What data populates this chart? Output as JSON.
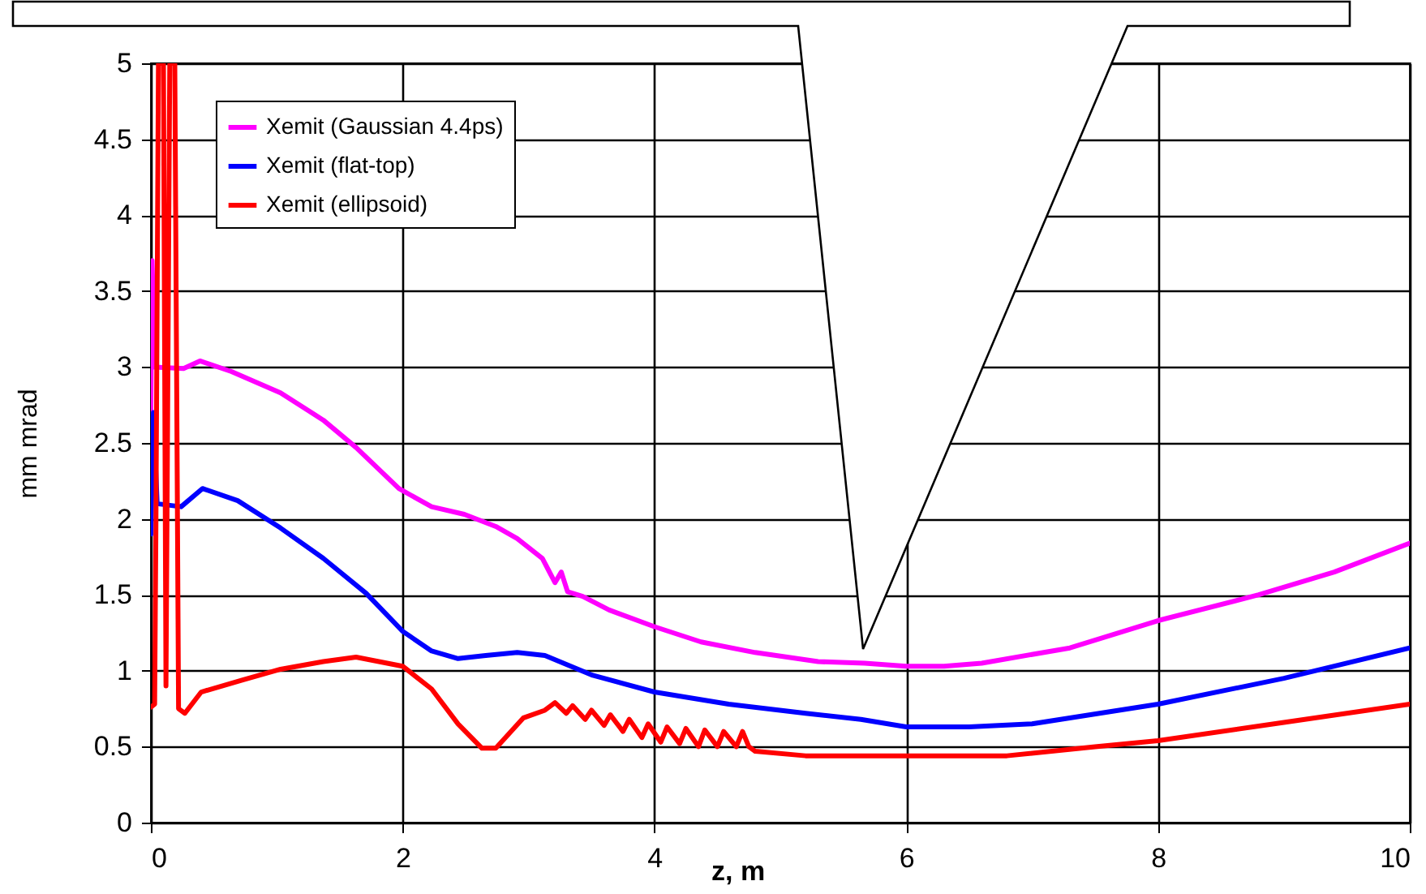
{
  "chart_data": {
    "type": "line",
    "xlabel": "z, m",
    "ylabel": "mm mrad",
    "xlim": [
      0,
      10
    ],
    "xticks": [
      0,
      2,
      4,
      6,
      8,
      10
    ],
    "ylim": [
      0,
      5
    ],
    "yticks": [
      0,
      0.5,
      1,
      1.5,
      2,
      2.5,
      3,
      3.5,
      4,
      4.5,
      5
    ],
    "grid": true,
    "legend": "top left",
    "line_style": "solid",
    "marker": "none",
    "series": [
      {
        "name": "Xemit (Gaussian 4.4ps)",
        "color": "#ff00ff",
        "x": [
          0,
          0.01,
          0.03,
          0.26,
          0.39,
          0.64,
          1.03,
          1.37,
          1.63,
          1.97,
          2.23,
          2.49,
          2.74,
          2.91,
          3.11,
          3.16,
          3.21,
          3.26,
          3.31,
          3.43,
          3.64,
          4,
          4.37,
          4.8,
          5.3,
          5.67,
          6,
          6.3,
          6.6,
          7.3,
          8,
          8.8,
          9.4,
          10
        ],
        "values": [
          2.7,
          3.7,
          3.0,
          2.99,
          3.04,
          2.97,
          2.83,
          2.65,
          2.47,
          2.2,
          2.08,
          2.03,
          1.95,
          1.87,
          1.74,
          1.66,
          1.58,
          1.65,
          1.52,
          1.49,
          1.4,
          1.29,
          1.19,
          1.12,
          1.06,
          1.05,
          1.03,
          1.03,
          1.05,
          1.15,
          1.33,
          1.5,
          1.65,
          1.84
        ]
      },
      {
        "name": "Xemit (flat-top)",
        "color": "#0000ff",
        "x": [
          0,
          0.02,
          0.05,
          0.24,
          0.41,
          0.69,
          1.03,
          1.37,
          1.71,
          2,
          2.23,
          2.44,
          2.66,
          2.91,
          3.13,
          3.51,
          4,
          4.59,
          5.2,
          5.64,
          6,
          6.5,
          7,
          8,
          9,
          10
        ],
        "values": [
          1.9,
          2.7,
          2.1,
          2.08,
          2.2,
          2.12,
          1.94,
          1.74,
          1.51,
          1.26,
          1.13,
          1.08,
          1.1,
          1.12,
          1.1,
          0.97,
          0.86,
          0.78,
          0.72,
          0.68,
          0.63,
          0.63,
          0.65,
          0.78,
          0.95,
          1.15
        ]
      },
      {
        "name": "Xemit (ellipsoid)",
        "color": "#ff0000",
        "x": [
          0,
          0.03,
          0.04,
          0.06,
          0.1,
          0.12,
          0.15,
          0.19,
          0.22,
          0.27,
          0.4,
          0.73,
          1.03,
          1.37,
          1.63,
          2,
          2.23,
          2.44,
          2.63,
          2.74,
          2.96,
          3.13,
          3.21,
          3.3,
          3.35,
          3.45,
          3.5,
          3.6,
          3.65,
          3.75,
          3.8,
          3.9,
          3.95,
          4.05,
          4.1,
          4.2,
          4.25,
          4.35,
          4.4,
          4.5,
          4.55,
          4.65,
          4.7,
          4.75,
          4.8,
          5.2,
          6.8,
          7.5,
          8,
          9,
          10
        ],
        "values": [
          0.76,
          0.78,
          1.95,
          5,
          5,
          0.9,
          5,
          5,
          0.75,
          0.72,
          0.86,
          0.94,
          1.01,
          1.06,
          1.09,
          1.03,
          0.88,
          0.65,
          0.49,
          0.49,
          0.69,
          0.74,
          0.79,
          0.72,
          0.77,
          0.68,
          0.74,
          0.64,
          0.71,
          0.6,
          0.68,
          0.56,
          0.65,
          0.53,
          0.63,
          0.52,
          0.62,
          0.5,
          0.61,
          0.5,
          0.6,
          0.5,
          0.6,
          0.5,
          0.47,
          0.44,
          0.44,
          0.5,
          0.54,
          0.66,
          0.78
        ]
      }
    ]
  }
}
